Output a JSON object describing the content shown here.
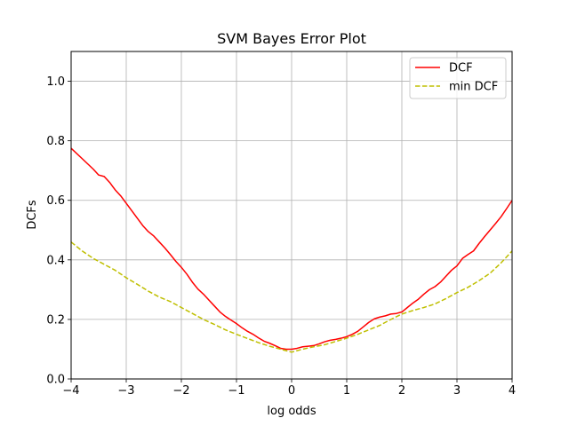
{
  "chart_data": {
    "type": "line",
    "title": "SVM Bayes Error Plot",
    "xlabel": "log odds",
    "ylabel": "DCFs",
    "xlim": [
      -4,
      4
    ],
    "ylim": [
      0,
      1.1
    ],
    "grid": true,
    "legend_position": "top-right",
    "x_ticks": [
      -4,
      -3,
      -2,
      -1,
      0,
      1,
      2,
      3,
      4
    ],
    "x_tick_labels": [
      "−4",
      "−3",
      "−2",
      "−1",
      "0",
      "1",
      "2",
      "3",
      "4"
    ],
    "y_ticks": [
      0,
      0.2,
      0.4,
      0.6,
      0.8,
      1.0
    ],
    "y_tick_labels": [
      "0.0",
      "0.2",
      "0.4",
      "0.6",
      "0.8",
      "1.0"
    ],
    "series": [
      {
        "name": "DCF",
        "color": "#ff0000",
        "dash": "solid",
        "x": [
          -4.0,
          -3.8,
          -3.6,
          -3.5,
          -3.4,
          -3.3,
          -3.2,
          -3.1,
          -3.0,
          -2.9,
          -2.8,
          -2.7,
          -2.6,
          -2.5,
          -2.4,
          -2.3,
          -2.2,
          -2.1,
          -2.0,
          -1.9,
          -1.8,
          -1.7,
          -1.6,
          -1.5,
          -1.4,
          -1.3,
          -1.2,
          -1.1,
          -1.0,
          -0.9,
          -0.8,
          -0.7,
          -0.6,
          -0.5,
          -0.4,
          -0.3,
          -0.2,
          -0.1,
          0.0,
          0.1,
          0.2,
          0.3,
          0.4,
          0.5,
          0.6,
          0.7,
          0.8,
          0.9,
          1.0,
          1.1,
          1.2,
          1.3,
          1.4,
          1.5,
          1.6,
          1.7,
          1.8,
          1.9,
          2.0,
          2.1,
          2.2,
          2.3,
          2.4,
          2.5,
          2.6,
          2.7,
          2.8,
          2.9,
          3.0,
          3.1,
          3.2,
          3.3,
          3.4,
          3.5,
          3.6,
          3.7,
          3.8,
          3.9,
          4.0
        ],
        "values": [
          0.775,
          0.74,
          0.705,
          0.685,
          0.68,
          0.66,
          0.635,
          0.615,
          0.59,
          0.565,
          0.54,
          0.515,
          0.495,
          0.48,
          0.46,
          0.44,
          0.418,
          0.395,
          0.375,
          0.352,
          0.325,
          0.302,
          0.285,
          0.265,
          0.245,
          0.225,
          0.21,
          0.198,
          0.186,
          0.172,
          0.16,
          0.15,
          0.138,
          0.127,
          0.12,
          0.112,
          0.103,
          0.1,
          0.1,
          0.103,
          0.108,
          0.11,
          0.112,
          0.118,
          0.125,
          0.13,
          0.133,
          0.137,
          0.142,
          0.15,
          0.16,
          0.175,
          0.19,
          0.202,
          0.208,
          0.212,
          0.218,
          0.22,
          0.225,
          0.24,
          0.255,
          0.268,
          0.285,
          0.3,
          0.31,
          0.325,
          0.345,
          0.365,
          0.38,
          0.405,
          0.418,
          0.43,
          0.455,
          0.478,
          0.5,
          0.522,
          0.545,
          0.572,
          0.6
        ]
      },
      {
        "name": "min DCF",
        "color": "#bfbf00",
        "dash": "dashed",
        "x": [
          -4.0,
          -3.8,
          -3.6,
          -3.4,
          -3.2,
          -3.0,
          -2.8,
          -2.6,
          -2.4,
          -2.2,
          -2.0,
          -1.8,
          -1.6,
          -1.4,
          -1.2,
          -1.0,
          -0.8,
          -0.6,
          -0.4,
          -0.2,
          0.0,
          0.2,
          0.4,
          0.6,
          0.8,
          1.0,
          1.2,
          1.4,
          1.6,
          1.8,
          2.0,
          2.2,
          2.4,
          2.6,
          2.8,
          3.0,
          3.2,
          3.4,
          3.6,
          3.8,
          4.0
        ],
        "values": [
          0.46,
          0.43,
          0.405,
          0.385,
          0.365,
          0.34,
          0.318,
          0.295,
          0.275,
          0.26,
          0.24,
          0.22,
          0.2,
          0.183,
          0.165,
          0.15,
          0.136,
          0.122,
          0.11,
          0.1,
          0.09,
          0.1,
          0.108,
          0.115,
          0.126,
          0.137,
          0.15,
          0.165,
          0.18,
          0.2,
          0.218,
          0.23,
          0.24,
          0.252,
          0.27,
          0.29,
          0.308,
          0.33,
          0.355,
          0.39,
          0.43
        ]
      }
    ]
  }
}
